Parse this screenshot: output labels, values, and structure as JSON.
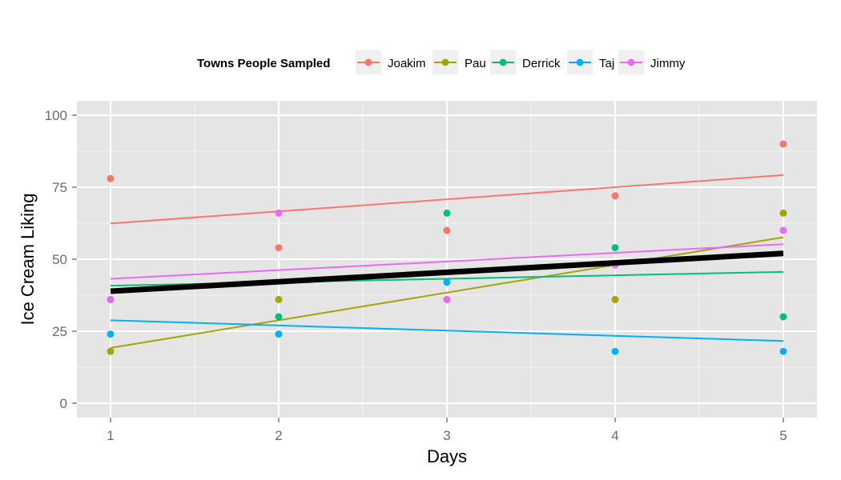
{
  "chart_data": {
    "type": "line",
    "xlabel": "Days",
    "ylabel": "Ice Cream Liking",
    "x": [
      1,
      2,
      3,
      4,
      5
    ],
    "xlim": [
      0.8,
      5.2
    ],
    "ylim": [
      -5,
      105
    ],
    "xticks": [
      "1",
      "2",
      "3",
      "4",
      "5"
    ],
    "yticks": [
      "0",
      "25",
      "50",
      "75",
      "100"
    ],
    "grid": true,
    "legend": {
      "title": "Towns People Sampled",
      "position": "top"
    },
    "series": [
      {
        "name": "Joakim",
        "color": "#F8766D",
        "values": [
          78,
          54,
          60,
          72,
          90
        ],
        "fit": [
          62.4,
          79.2
        ]
      },
      {
        "name": "Pau",
        "color": "#A3A500",
        "values": [
          18,
          36,
          36,
          36,
          66
        ],
        "fit": [
          19.2,
          57.6
        ]
      },
      {
        "name": "Derrick",
        "color": "#00BF7D",
        "values": [
          36,
          30,
          66,
          54,
          30
        ],
        "fit": [
          40.8,
          45.6
        ]
      },
      {
        "name": "Taj",
        "color": "#00B0F6",
        "values": [
          24,
          24,
          42,
          18,
          18
        ],
        "fit": [
          28.8,
          21.6
        ]
      },
      {
        "name": "Jimmy",
        "color": "#E76BF3",
        "values": [
          36,
          66,
          36,
          48,
          60
        ],
        "fit": [
          43.2,
          55.2
        ]
      }
    ],
    "overall_fit": {
      "color": "#000000",
      "values": [
        38.9,
        52.0
      ]
    }
  }
}
